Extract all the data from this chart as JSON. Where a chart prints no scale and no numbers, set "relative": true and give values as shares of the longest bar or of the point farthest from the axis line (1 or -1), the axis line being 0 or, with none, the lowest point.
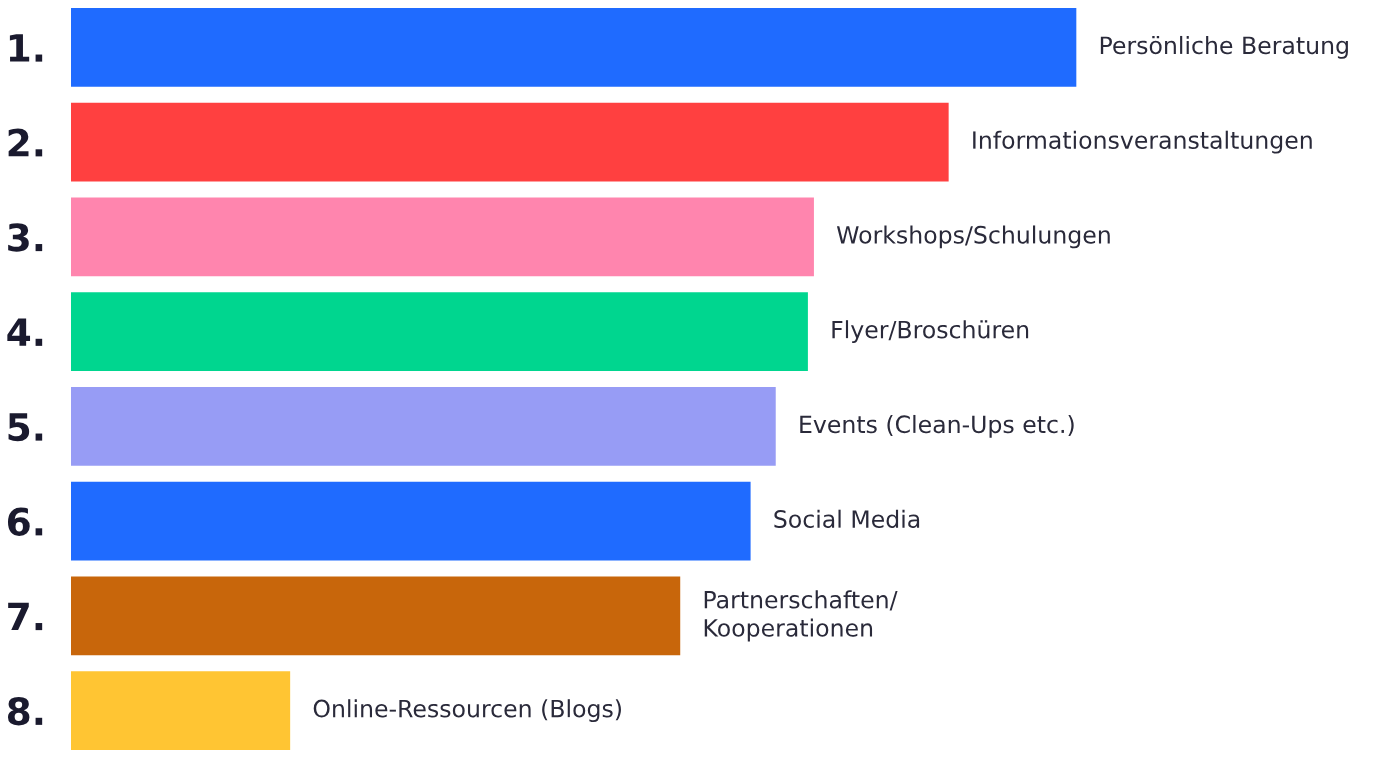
{
  "chart_data": {
    "type": "bar",
    "orientation": "horizontal",
    "relative": true,
    "categories": [
      "1.",
      "2.",
      "3.",
      "4.",
      "5.",
      "6.",
      "7.",
      "8."
    ],
    "values": [
      1,
      0.873,
      0.739,
      0.733,
      0.701,
      0.676,
      0.606,
      0.218
    ],
    "colors": [
      "#1f6bff",
      "#ff4040",
      "#ff85ae",
      "#00d68f",
      "#979cf5",
      "#1f6bff",
      "#c8660b",
      "#ffc533"
    ],
    "annotations": [
      {
        "text": "Persönliche Beratung",
        "x": 1,
        "y": "1."
      },
      {
        "text": "Informationsveranstaltungen",
        "x": 0.873,
        "y": "2."
      },
      {
        "text": "Workshops/Schulungen",
        "x": 0.739,
        "y": "3."
      },
      {
        "text": "Flyer/Broschüren",
        "x": 0.733,
        "y": "4."
      },
      {
        "text": "Events (Clean-Ups etc.)",
        "x": 0.701,
        "y": "5."
      },
      {
        "text": "Social Media",
        "x": 0.676,
        "y": "6."
      },
      {
        "text": "Partnerschaften/\nKooperationen",
        "x": 0.606,
        "y": "7."
      },
      {
        "text": "Online-Ressourcen (Blogs)",
        "x": 0.218,
        "y": "8."
      }
    ],
    "grid": false,
    "legend": false
  }
}
